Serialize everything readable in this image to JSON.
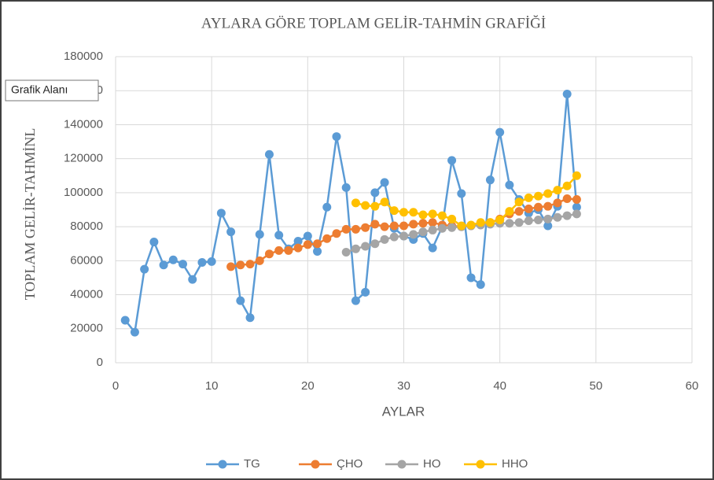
{
  "chart_data": {
    "type": "line",
    "title": "AYLARA GÖRE TOPLAM GELİR-TAHMİN GRAFİĞİ",
    "x_label": "AYLAR",
    "y_label": "TOPLAM GELİR-TAHMİNL",
    "tooltip": "Grafik Alanı",
    "xlim": [
      0,
      60
    ],
    "xticks": [
      0,
      10,
      20,
      30,
      40,
      50,
      60
    ],
    "ylim": [
      0,
      180000
    ],
    "yticks": [
      0,
      20000,
      40000,
      60000,
      80000,
      100000,
      120000,
      140000,
      160000,
      180000
    ],
    "grid": true,
    "legend": "bottom",
    "series": [
      {
        "name": "TG",
        "color": "#5b9bd5",
        "x": [
          1,
          2,
          3,
          4,
          5,
          6,
          7,
          8,
          9,
          10,
          11,
          12,
          13,
          14,
          15,
          16,
          17,
          18,
          19,
          20,
          21,
          22,
          23,
          24,
          25,
          26,
          27,
          28,
          29,
          30,
          31,
          32,
          33,
          34,
          35,
          36,
          37,
          38,
          39,
          40,
          41,
          42,
          43,
          44,
          45,
          46,
          47,
          48
        ],
        "values": [
          25000,
          18000,
          55000,
          71000,
          57500,
          60500,
          58000,
          49000,
          59000,
          59500,
          88000,
          77000,
          36500,
          26500,
          75500,
          122500,
          75000,
          67000,
          71500,
          74500,
          65500,
          91500,
          133000,
          103000,
          36500,
          41500,
          100000,
          106000,
          79000,
          74500,
          72500,
          76000,
          67500,
          80000,
          119000,
          99500,
          50000,
          46000,
          107500,
          135500,
          104500,
          96000,
          88000,
          90000,
          80500,
          92000,
          158000,
          91500
        ]
      },
      {
        "name": "ÇHO",
        "color": "#ed7d31",
        "x": [
          12,
          13,
          14,
          15,
          16,
          17,
          18,
          19,
          20,
          21,
          22,
          23,
          24,
          25,
          26,
          27,
          28,
          29,
          30,
          31,
          32,
          33,
          34,
          35,
          36,
          37,
          38,
          39,
          40,
          41,
          42,
          43,
          44,
          45,
          46,
          47,
          48
        ],
        "values": [
          56500,
          57500,
          58000,
          60000,
          64000,
          66000,
          66000,
          67500,
          69500,
          70000,
          73000,
          76000,
          78500,
          78500,
          79500,
          81500,
          80000,
          80500,
          80500,
          81500,
          82000,
          82500,
          81000,
          80500,
          80000,
          80500,
          81500,
          82500,
          84500,
          87500,
          89000,
          90500,
          91500,
          92000,
          94000,
          96500,
          96000
        ]
      },
      {
        "name": "HO",
        "color": "#a5a5a5",
        "x": [
          24,
          25,
          26,
          27,
          28,
          29,
          30,
          31,
          32,
          33,
          34,
          35,
          36,
          37,
          38,
          39,
          40,
          41,
          42,
          43,
          44,
          45,
          46,
          47,
          48
        ],
        "values": [
          65000,
          67000,
          68500,
          70000,
          72500,
          74000,
          74500,
          75500,
          77000,
          78000,
          79000,
          79500,
          80000,
          80500,
          81000,
          81500,
          82000,
          82000,
          82500,
          83500,
          84000,
          84500,
          85500,
          86500,
          87500
        ]
      },
      {
        "name": "HHO",
        "color": "#ffc000",
        "x": [
          25,
          26,
          27,
          28,
          29,
          30,
          31,
          32,
          33,
          34,
          35,
          36,
          37,
          38,
          39,
          40,
          41,
          42,
          43,
          44,
          45,
          46,
          47,
          48
        ],
        "values": [
          94000,
          92500,
          92000,
          94500,
          89500,
          88500,
          88500,
          87000,
          87500,
          86500,
          84500,
          80500,
          81000,
          82500,
          82500,
          84000,
          89000,
          94500,
          97000,
          98000,
          99500,
          101500,
          104000,
          110000
        ]
      }
    ]
  }
}
